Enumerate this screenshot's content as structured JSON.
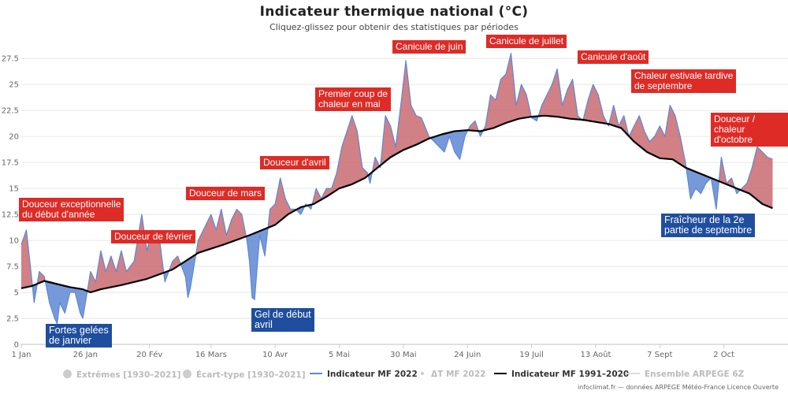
{
  "title": "Indicateur thermique national (°C)",
  "subtitle": "Cliquez-glissez pour obtenir des statistiques par périodes",
  "credit": "infoclimat.fr — données ARPEGE Météo-France Licence Ouverte",
  "colors": {
    "warm_fill": "#c96a70",
    "cold_fill": "#5f87d3",
    "indicator_2022": "#5b88d8",
    "normal_1991_2020": "#000000",
    "annotation_red": "#de2b26",
    "annotation_blue": "#1f4e9e"
  },
  "legend": [
    {
      "label": "Extrêmes [1930–2021]",
      "symbol": "circle",
      "active": false
    },
    {
      "label": "Écart-type [1930–2021]",
      "symbol": "circle",
      "active": false
    },
    {
      "label": "Indicateur MF 2022",
      "symbol": "line-blue",
      "active": true
    },
    {
      "label": "ΔT MF 2022",
      "symbol": "dot",
      "active": false
    },
    {
      "label": "Indicateur MF 1991–2020",
      "symbol": "line-black",
      "active": true
    },
    {
      "label": "Ensemble ARPEGE 6Z",
      "symbol": "line-light",
      "active": false
    }
  ],
  "annotations": [
    {
      "text": "Douceur exceptionnelle\ndu début d'année",
      "style": "red"
    },
    {
      "text": "Fortes gelées\nde janvier",
      "style": "blue"
    },
    {
      "text": "Douceur de février",
      "style": "red"
    },
    {
      "text": "Douceur de mars",
      "style": "red"
    },
    {
      "text": "Gel de début\navril",
      "style": "blue"
    },
    {
      "text": "Douceur d'avril",
      "style": "red"
    },
    {
      "text": "Premier coup de\nchaleur en mai",
      "style": "red"
    },
    {
      "text": "Canicule de juin",
      "style": "red"
    },
    {
      "text": "Canicule de juillet",
      "style": "red"
    },
    {
      "text": "Canicule d'août",
      "style": "red"
    },
    {
      "text": "Chaleur estivale tardive\nde septembre",
      "style": "red"
    },
    {
      "text": "Fraîcheur de la 2e\npartie de septembre",
      "style": "blue"
    },
    {
      "text": "Douceur / chaleur\nd'octobre",
      "style": "red"
    }
  ],
  "chart_data": {
    "type": "area",
    "title": "Indicateur thermique national (°C)",
    "ylim": [
      0,
      28.5
    ],
    "yticks": [
      0,
      2.5,
      5,
      7.5,
      10,
      12.5,
      15,
      17.5,
      20,
      22.5,
      25,
      27.5
    ],
    "xlim_day": [
      1,
      300
    ],
    "xticks": [
      {
        "label": "1 Jan",
        "day": 1
      },
      {
        "label": "26 Jan",
        "day": 26
      },
      {
        "label": "20 Fév",
        "day": 51
      },
      {
        "label": "16 Mars",
        "day": 75
      },
      {
        "label": "10 Avr",
        "day": 100
      },
      {
        "label": "5 Mai",
        "day": 125
      },
      {
        "label": "30 Mai",
        "day": 150
      },
      {
        "label": "24 Juin",
        "day": 175
      },
      {
        "label": "19 Juil",
        "day": 200
      },
      {
        "label": "13 Août",
        "day": 225
      },
      {
        "label": "7 Sept",
        "day": 250
      },
      {
        "label": "2 Oct",
        "day": 275
      }
    ],
    "grid": true,
    "series": [
      {
        "name": "Indicateur MF 2022",
        "points": [
          [
            1,
            9.6
          ],
          [
            3,
            11
          ],
          [
            5,
            6.5
          ],
          [
            6,
            4
          ],
          [
            8,
            7
          ],
          [
            10,
            6.5
          ],
          [
            12,
            4
          ],
          [
            14,
            2.5
          ],
          [
            15,
            2
          ],
          [
            16,
            4
          ],
          [
            18,
            3
          ],
          [
            20,
            5
          ],
          [
            22,
            5
          ],
          [
            24,
            3
          ],
          [
            25,
            2.5
          ],
          [
            26,
            4
          ],
          [
            28,
            7
          ],
          [
            30,
            6
          ],
          [
            32,
            9
          ],
          [
            34,
            7
          ],
          [
            36,
            8.5
          ],
          [
            38,
            7
          ],
          [
            40,
            9
          ],
          [
            42,
            7
          ],
          [
            45,
            8
          ],
          [
            48,
            12.5
          ],
          [
            50,
            9
          ],
          [
            52,
            11
          ],
          [
            55,
            10
          ],
          [
            57,
            6
          ],
          [
            60,
            8
          ],
          [
            62,
            8.5
          ],
          [
            65,
            6.5
          ],
          [
            66,
            4.5
          ],
          [
            67,
            5.5
          ],
          [
            70,
            10
          ],
          [
            73,
            11.5
          ],
          [
            75,
            12.5
          ],
          [
            77,
            11
          ],
          [
            79,
            13
          ],
          [
            81,
            10.5
          ],
          [
            83,
            12
          ],
          [
            85,
            13
          ],
          [
            87,
            12.5
          ],
          [
            89,
            10
          ],
          [
            90,
            8
          ],
          [
            91,
            4.5
          ],
          [
            92,
            4.3
          ],
          [
            94,
            10.5
          ],
          [
            96,
            8.5
          ],
          [
            98,
            13
          ],
          [
            100,
            13.5
          ],
          [
            102,
            16
          ],
          [
            104,
            14
          ],
          [
            106,
            13
          ],
          [
            108,
            13
          ],
          [
            110,
            12.5
          ],
          [
            112,
            13.5
          ],
          [
            114,
            13
          ],
          [
            116,
            15
          ],
          [
            118,
            14
          ],
          [
            120,
            15
          ],
          [
            122,
            15
          ],
          [
            124,
            16.5
          ],
          [
            126,
            19
          ],
          [
            128,
            20.5
          ],
          [
            130,
            22
          ],
          [
            132,
            20.5
          ],
          [
            134,
            17
          ],
          [
            136,
            16.5
          ],
          [
            137,
            15.5
          ],
          [
            139,
            18
          ],
          [
            141,
            17
          ],
          [
            143,
            22
          ],
          [
            145,
            21
          ],
          [
            147,
            19
          ],
          [
            149,
            23
          ],
          [
            151,
            27.3
          ],
          [
            153,
            23
          ],
          [
            155,
            22
          ],
          [
            157,
            21.8
          ],
          [
            160,
            20
          ],
          [
            162,
            19.5
          ],
          [
            164,
            19
          ],
          [
            166,
            18.5
          ],
          [
            168,
            20
          ],
          [
            170,
            18.5
          ],
          [
            172,
            17.8
          ],
          [
            174,
            20
          ],
          [
            176,
            21
          ],
          [
            178,
            21.5
          ],
          [
            180,
            20
          ],
          [
            182,
            21
          ],
          [
            184,
            24
          ],
          [
            186,
            23.5
          ],
          [
            188,
            25.5
          ],
          [
            190,
            26
          ],
          [
            192,
            28
          ],
          [
            194,
            23
          ],
          [
            196,
            25
          ],
          [
            198,
            24
          ],
          [
            200,
            21.8
          ],
          [
            202,
            21.5
          ],
          [
            204,
            23
          ],
          [
            206,
            24
          ],
          [
            208,
            25
          ],
          [
            210,
            26.5
          ],
          [
            212,
            23
          ],
          [
            214,
            24.5
          ],
          [
            216,
            25.5
          ],
          [
            218,
            22
          ],
          [
            220,
            21.5
          ],
          [
            222,
            23.5
          ],
          [
            224,
            25
          ],
          [
            226,
            24
          ],
          [
            228,
            22
          ],
          [
            230,
            21
          ],
          [
            232,
            23
          ],
          [
            234,
            21
          ],
          [
            236,
            22
          ],
          [
            238,
            20
          ],
          [
            240,
            21
          ],
          [
            242,
            22
          ],
          [
            244,
            20.5
          ],
          [
            246,
            19.5
          ],
          [
            248,
            20
          ],
          [
            250,
            21
          ],
          [
            252,
            20
          ],
          [
            254,
            23
          ],
          [
            256,
            22
          ],
          [
            258,
            20
          ],
          [
            260,
            17.5
          ],
          [
            262,
            14
          ],
          [
            264,
            15
          ],
          [
            266,
            14.5
          ],
          [
            268,
            15.5
          ],
          [
            270,
            16
          ],
          [
            272,
            13
          ],
          [
            274,
            18
          ],
          [
            276,
            15.5
          ],
          [
            278,
            16
          ],
          [
            280,
            14.5
          ],
          [
            282,
            15
          ],
          [
            284,
            15.5
          ],
          [
            286,
            17
          ],
          [
            288,
            19
          ],
          [
            290,
            18.5
          ],
          [
            292,
            18
          ],
          [
            294,
            17.8
          ]
        ],
        "color": "#5b88d8"
      },
      {
        "name": "Indicateur MF 1991–2020",
        "points": [
          [
            1,
            5.4
          ],
          [
            5,
            5.6
          ],
          [
            10,
            6.1
          ],
          [
            15,
            5.8
          ],
          [
            20,
            5.5
          ],
          [
            25,
            5.3
          ],
          [
            28,
            5
          ],
          [
            32,
            5.3
          ],
          [
            40,
            5.7
          ],
          [
            50,
            6.3
          ],
          [
            60,
            7.2
          ],
          [
            70,
            8.8
          ],
          [
            80,
            9.6
          ],
          [
            90,
            10.5
          ],
          [
            100,
            11.5
          ],
          [
            105,
            12.5
          ],
          [
            110,
            13.2
          ],
          [
            115,
            13.5
          ],
          [
            120,
            14.2
          ],
          [
            125,
            15
          ],
          [
            130,
            15.4
          ],
          [
            135,
            16
          ],
          [
            140,
            17
          ],
          [
            145,
            18
          ],
          [
            150,
            18.7
          ],
          [
            155,
            19.2
          ],
          [
            160,
            19.8
          ],
          [
            165,
            20.2
          ],
          [
            170,
            20.5
          ],
          [
            175,
            20.6
          ],
          [
            180,
            20.5
          ],
          [
            185,
            20.8
          ],
          [
            190,
            21.3
          ],
          [
            195,
            21.7
          ],
          [
            200,
            21.9
          ],
          [
            205,
            22
          ],
          [
            210,
            21.9
          ],
          [
            215,
            21.7
          ],
          [
            220,
            21.6
          ],
          [
            225,
            21.4
          ],
          [
            230,
            21.2
          ],
          [
            235,
            20.8
          ],
          [
            240,
            19.5
          ],
          [
            245,
            18.5
          ],
          [
            250,
            17.9
          ],
          [
            255,
            17.8
          ],
          [
            260,
            17
          ],
          [
            265,
            16.5
          ],
          [
            270,
            16
          ],
          [
            275,
            15.5
          ],
          [
            280,
            15
          ],
          [
            285,
            14.5
          ],
          [
            290,
            13.5
          ],
          [
            294,
            13.1
          ]
        ],
        "color": "#000000"
      }
    ]
  }
}
